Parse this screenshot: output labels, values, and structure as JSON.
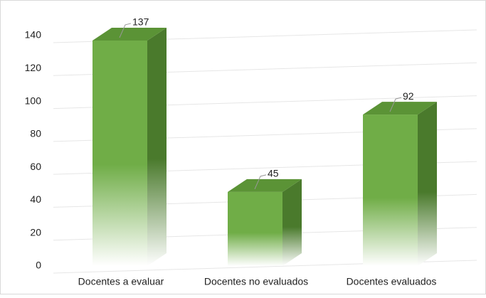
{
  "chart_data": {
    "type": "bar",
    "categories": [
      "Docentes a evaluar",
      "Docentes no evaluados",
      "Docentes evaluados"
    ],
    "values": [
      137,
      45,
      92
    ],
    "color": "#70ad47",
    "ylim": [
      0,
      140
    ],
    "yticks": [
      0,
      20,
      40,
      60,
      80,
      100,
      120,
      140
    ],
    "grid": true
  }
}
